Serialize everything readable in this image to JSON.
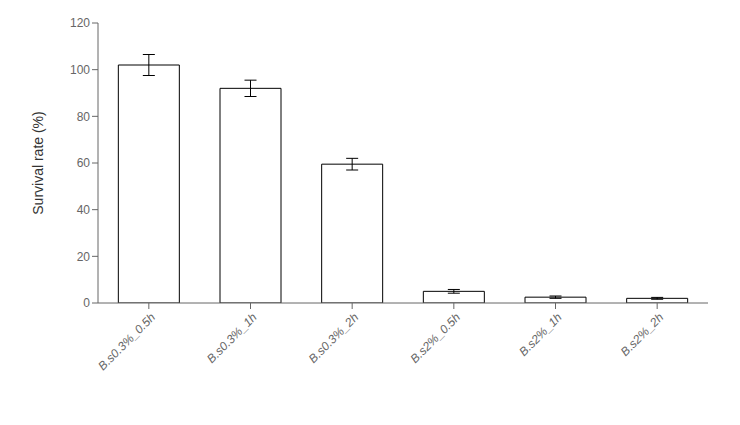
{
  "chart_data": {
    "type": "bar",
    "categories": [
      "B.s0.3%_0.5h",
      "B.s0.3%_1h",
      "B.s0.3%_2h",
      "B.s2%_0.5h",
      "B.s2%_1h",
      "B.s2%_2h"
    ],
    "values": [
      102.0,
      92.0,
      59.5,
      5.0,
      2.5,
      2.0
    ],
    "errors": [
      4.5,
      3.5,
      2.5,
      0.8,
      0.5,
      0.4
    ],
    "color": "#ffffff",
    "ylabel": "Survival rate (%)",
    "ylim": [
      0,
      120
    ],
    "yticks": [
      0,
      20,
      40,
      60,
      80,
      100,
      120
    ],
    "grid": false
  }
}
